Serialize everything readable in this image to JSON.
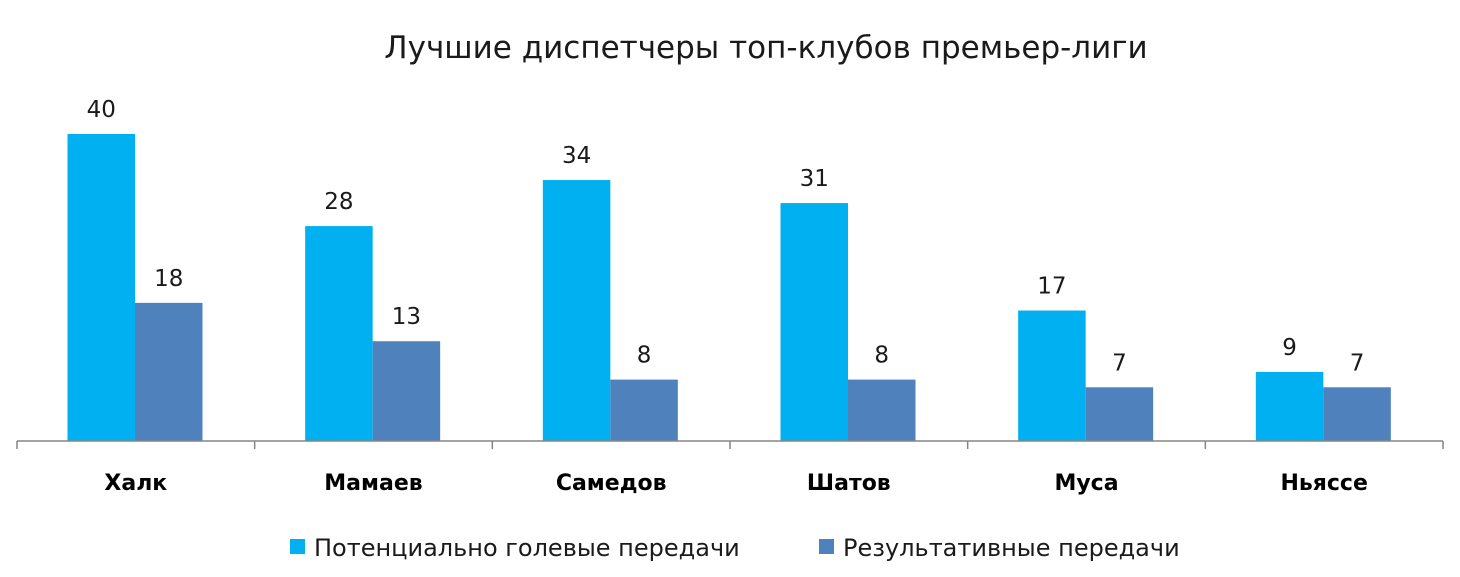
{
  "chart_data": {
    "type": "bar",
    "title": "Лучшие диспетчеры топ-клубов премьер-лиги",
    "xlabel": "",
    "ylabel": "",
    "ylim": [
      0,
      40
    ],
    "grid": false,
    "legend_position": "bottom",
    "categories": [
      "Халк",
      "Мамаев",
      "Самедов",
      "Шатов",
      "Муса",
      "Ньяссе"
    ],
    "series": [
      {
        "name": "Потенциально голевые передачи",
        "color": "#00b0f0",
        "values": [
          40,
          28,
          34,
          31,
          17,
          9
        ]
      },
      {
        "name": "Результативные передачи",
        "color": "#4f81bd",
        "values": [
          18,
          13,
          8,
          8,
          7,
          7
        ]
      }
    ]
  }
}
